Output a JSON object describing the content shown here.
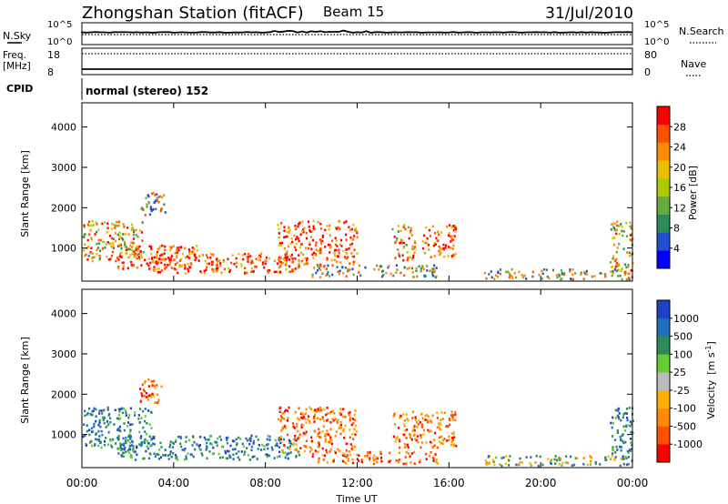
{
  "header": {
    "title": "Zhongshan Station (fitACF)",
    "beam": "Beam 15",
    "date": "31/Jul/2010"
  },
  "panels": {
    "nsky": {
      "label": "N.Sky",
      "ticks": [
        "10^5",
        "10^0"
      ]
    },
    "nsearch": {
      "label": "N.Search",
      "ticks": [
        "10^5",
        "10^0"
      ]
    },
    "freq": {
      "label_line1": "Freq.",
      "label_line2": "[MHz]",
      "ticks": [
        "18",
        "8"
      ]
    },
    "nave": {
      "label": "Nave",
      "ticks": [
        "80",
        "0"
      ]
    },
    "cpid": {
      "label": "CPID",
      "text": "normal (stereo) 152"
    }
  },
  "chart_data": [
    {
      "type": "heatmap",
      "name": "power",
      "xlabel": "Time UT",
      "ylabel": "Slant Range [km]",
      "x_ticks": [
        "00:00",
        "04:00",
        "08:00",
        "12:00",
        "16:00",
        "20:00",
        "00:00"
      ],
      "x_hours": [
        0,
        4,
        8,
        12,
        16,
        20,
        24
      ],
      "y_ticks": [
        1000,
        2000,
        3000,
        4000
      ],
      "ylim": [
        180,
        4600
      ],
      "colorbar": {
        "label": "Power [dB]",
        "ticks": [
          "28",
          "24",
          "20",
          "16",
          "12",
          "8",
          "4"
        ],
        "colors": [
          "#0000ff",
          "#2050d0",
          "#2e8b57",
          "#66aa44",
          "#b0c800",
          "#e8c000",
          "#ff8c00",
          "#ff5000",
          "#ff0000"
        ]
      },
      "scatter_regions": [
        {
          "t0": 0.0,
          "t1": 2.7,
          "r0": 700,
          "r1": 1700,
          "level": "mid"
        },
        {
          "t0": 1.5,
          "t1": 5.0,
          "r0": 500,
          "r1": 1100,
          "level": "high"
        },
        {
          "t0": 3.0,
          "t1": 9.5,
          "r0": 400,
          "r1": 900,
          "level": "high"
        },
        {
          "t0": 8.5,
          "t1": 12.0,
          "r0": 600,
          "r1": 1700,
          "level": "high"
        },
        {
          "t0": 10.0,
          "t1": 15.5,
          "r0": 300,
          "r1": 600,
          "level": "low"
        },
        {
          "t0": 13.5,
          "t1": 14.5,
          "r0": 700,
          "r1": 1600,
          "level": "mid"
        },
        {
          "t0": 14.8,
          "t1": 16.3,
          "r0": 800,
          "r1": 1600,
          "level": "high"
        },
        {
          "t0": 17.5,
          "t1": 24.0,
          "r0": 250,
          "r1": 500,
          "level": "low"
        },
        {
          "t0": 23.0,
          "t1": 24.0,
          "r0": 400,
          "r1": 1700,
          "level": "mid"
        },
        {
          "t0": 2.5,
          "t1": 3.6,
          "r0": 1800,
          "r1": 2400,
          "level": "low"
        }
      ]
    },
    {
      "type": "heatmap",
      "name": "velocity",
      "xlabel": "Time UT",
      "ylabel": "Slant Range [km]",
      "x_ticks": [
        "00:00",
        "04:00",
        "08:00",
        "12:00",
        "16:00",
        "20:00",
        "00:00"
      ],
      "x_hours": [
        0,
        4,
        8,
        12,
        16,
        20,
        24
      ],
      "y_ticks": [
        1000,
        2000,
        3000,
        4000
      ],
      "ylim": [
        180,
        4600
      ],
      "colorbar": {
        "label_line": "Velocity",
        "label_unit": "[m s",
        "label_sup": "-1",
        "label_close": "]",
        "ticks": [
          "1000",
          "500",
          "100",
          "25",
          "-25",
          "-100",
          "-500",
          "-1000"
        ],
        "colors": [
          "#ff0000",
          "#ff5000",
          "#ff8c00",
          "#ffb000",
          "#bbbbbb",
          "#66cc33",
          "#2e8b57",
          "#2070c0",
          "#2040c8"
        ]
      },
      "scatter_regions": [
        {
          "t0": 0.0,
          "t1": 3.0,
          "r0": 700,
          "r1": 1700,
          "level": "pos"
        },
        {
          "t0": 1.5,
          "t1": 9.5,
          "r0": 400,
          "r1": 1000,
          "level": "pos"
        },
        {
          "t0": 8.5,
          "t1": 12.0,
          "r0": 600,
          "r1": 1700,
          "level": "neg"
        },
        {
          "t0": 10.0,
          "t1": 15.5,
          "r0": 300,
          "r1": 600,
          "level": "neg"
        },
        {
          "t0": 13.5,
          "t1": 16.3,
          "r0": 700,
          "r1": 1600,
          "level": "neg"
        },
        {
          "t0": 17.5,
          "t1": 24.0,
          "r0": 250,
          "r1": 500,
          "level": "mix"
        },
        {
          "t0": 23.0,
          "t1": 24.0,
          "r0": 400,
          "r1": 1700,
          "level": "pos"
        },
        {
          "t0": 2.5,
          "t1": 3.6,
          "r0": 1800,
          "r1": 2400,
          "level": "neg"
        }
      ]
    }
  ]
}
